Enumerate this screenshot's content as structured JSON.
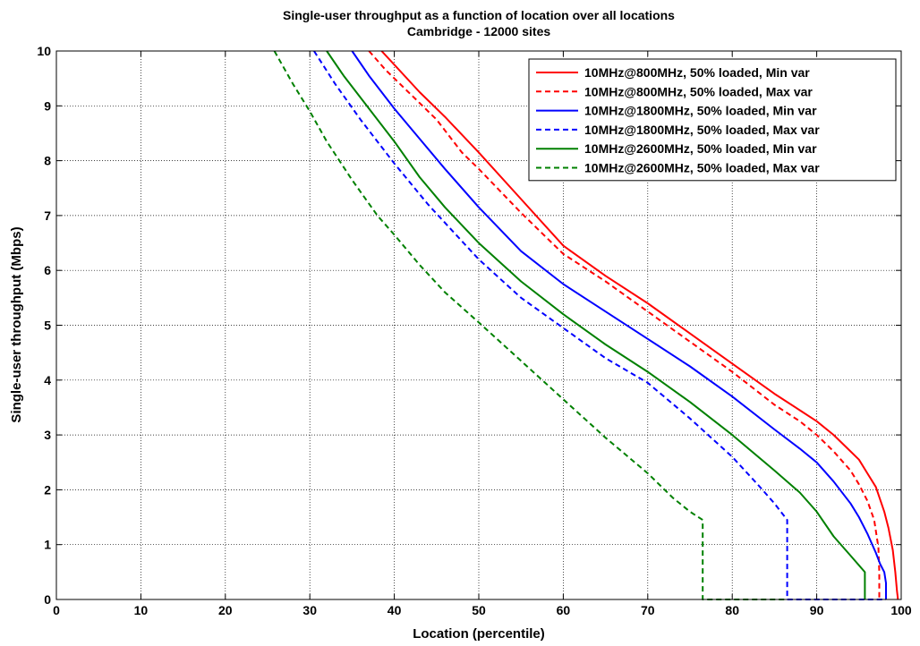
{
  "chart_data": {
    "type": "line",
    "title": "Single-user throughput as a function of location over all locations",
    "subtitle": "Cambridge - 12000 sites",
    "xlabel": "Location (percentile)",
    "ylabel": "Single-user throughput (Mbps)",
    "xlim": [
      0,
      100
    ],
    "ylim": [
      0,
      10
    ],
    "xticks": [
      "0",
      "10",
      "20",
      "30",
      "40",
      "50",
      "60",
      "70",
      "80",
      "90",
      "100"
    ],
    "yticks": [
      "0",
      "1",
      "2",
      "3",
      "4",
      "5",
      "6",
      "7",
      "8",
      "9",
      "10"
    ],
    "grid": true,
    "legend_position": "top-right",
    "series": [
      {
        "name": "10MHz@800MHz, 50% loaded, Min var",
        "color": "#ff0000",
        "dash": "solid",
        "x": [
          38.5,
          40,
          43,
          46,
          50,
          55,
          60,
          65,
          70,
          75,
          80,
          85,
          88,
          90,
          92,
          94,
          95,
          96,
          97,
          98,
          98.5,
          99,
          99.3,
          99.5,
          99.6,
          99.6
        ],
        "y": [
          10,
          9.75,
          9.25,
          8.8,
          8.15,
          7.3,
          6.45,
          5.9,
          5.4,
          4.85,
          4.3,
          3.75,
          3.45,
          3.25,
          3.0,
          2.7,
          2.55,
          2.3,
          2.05,
          1.6,
          1.3,
          0.9,
          0.5,
          0.15,
          0.03,
          0
        ]
      },
      {
        "name": "10MHz@800MHz, 50% loaded, Max var",
        "color": "#ff0000",
        "dash": "dashed",
        "x": [
          37,
          39,
          42,
          45,
          48,
          50,
          55,
          60,
          65,
          70,
          75,
          80,
          85,
          88,
          90,
          92,
          94,
          95,
          96,
          96.8,
          97.3,
          97.4,
          97.4
        ],
        "y": [
          10,
          9.65,
          9.2,
          8.75,
          8.15,
          7.85,
          7.05,
          6.3,
          5.8,
          5.25,
          4.7,
          4.15,
          3.55,
          3.25,
          3.0,
          2.7,
          2.35,
          2.1,
          1.8,
          1.45,
          0.95,
          0.5,
          0
        ]
      },
      {
        "name": "10MHz@1800MHz, 50% loaded, Min var",
        "color": "#0000ff",
        "dash": "solid",
        "x": [
          35,
          37,
          40,
          43,
          46,
          50,
          55,
          60,
          65,
          70,
          75,
          80,
          85,
          88,
          90,
          92,
          94,
          95,
          96,
          97,
          97.5,
          98,
          98.2,
          98.2
        ],
        "y": [
          10,
          9.55,
          8.95,
          8.4,
          7.85,
          7.15,
          6.35,
          5.75,
          5.25,
          4.75,
          4.25,
          3.7,
          3.1,
          2.75,
          2.5,
          2.15,
          1.75,
          1.5,
          1.2,
          0.85,
          0.65,
          0.5,
          0.3,
          0
        ]
      },
      {
        "name": "10MHz@1800MHz, 50% loaded, Max var",
        "color": "#0000ff",
        "dash": "dashed",
        "x": [
          30.5,
          33,
          36,
          40,
          44,
          47,
          50,
          55,
          60,
          65,
          70,
          75,
          80,
          83,
          85,
          86.5,
          86.5,
          86.5,
          95,
          98.2
        ],
        "y": [
          10,
          9.4,
          8.75,
          7.95,
          7.2,
          6.7,
          6.2,
          5.5,
          4.95,
          4.4,
          3.95,
          3.3,
          2.6,
          2.1,
          1.75,
          1.45,
          0.5,
          0,
          0,
          0
        ]
      },
      {
        "name": "10MHz@2600MHz, 50% loaded, Min var",
        "color": "#008000",
        "dash": "solid",
        "x": [
          32,
          34,
          37,
          40,
          43,
          46,
          50,
          55,
          60,
          65,
          70,
          75,
          80,
          85,
          88,
          90,
          92,
          94,
          95.7,
          95.7,
          95.7
        ],
        "y": [
          10,
          9.55,
          8.95,
          8.35,
          7.7,
          7.15,
          6.5,
          5.8,
          5.2,
          4.65,
          4.15,
          3.6,
          3.0,
          2.35,
          1.95,
          1.6,
          1.15,
          0.8,
          0.5,
          0.3,
          0
        ]
      },
      {
        "name": "10MHz@2600MHz, 50% loaded, Max var",
        "color": "#008000",
        "dash": "dashed",
        "x": [
          25.8,
          28,
          30,
          32,
          35,
          38,
          40,
          43,
          46,
          50,
          55,
          60,
          65,
          70,
          73,
          75,
          76.5,
          76.5,
          76.5,
          86.5
        ],
        "y": [
          10,
          9.4,
          8.9,
          8.35,
          7.65,
          7.0,
          6.65,
          6.1,
          5.6,
          5.05,
          4.35,
          3.65,
          2.95,
          2.3,
          1.85,
          1.6,
          1.45,
          0.6,
          0,
          0
        ]
      }
    ]
  }
}
